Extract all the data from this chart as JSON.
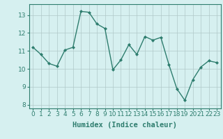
{
  "x": [
    0,
    1,
    2,
    3,
    4,
    5,
    6,
    7,
    8,
    9,
    10,
    11,
    12,
    13,
    14,
    15,
    16,
    17,
    18,
    19,
    20,
    21,
    22,
    23
  ],
  "y": [
    11.2,
    10.8,
    10.3,
    10.15,
    11.05,
    11.2,
    13.2,
    13.15,
    12.5,
    12.25,
    9.95,
    10.5,
    11.35,
    10.8,
    11.8,
    11.6,
    11.75,
    10.25,
    8.9,
    8.25,
    9.4,
    10.1,
    10.45,
    10.35
  ],
  "line_color": "#2e7d6e",
  "marker": "D",
  "marker_size": 2,
  "bg_color": "#d6f0f0",
  "grid_color": "#b0c8c8",
  "xlabel": "Humidex (Indice chaleur)",
  "xlabel_fontsize": 7.5,
  "ylim": [
    7.8,
    13.6
  ],
  "xlim": [
    -0.5,
    23.5
  ],
  "yticks": [
    8,
    9,
    10,
    11,
    12,
    13
  ],
  "xticks": [
    0,
    1,
    2,
    3,
    4,
    5,
    6,
    7,
    8,
    9,
    10,
    11,
    12,
    13,
    14,
    15,
    16,
    17,
    18,
    19,
    20,
    21,
    22,
    23
  ],
  "tick_fontsize": 6.5,
  "spine_color": "#2e7d6e",
  "line_width": 1.0
}
